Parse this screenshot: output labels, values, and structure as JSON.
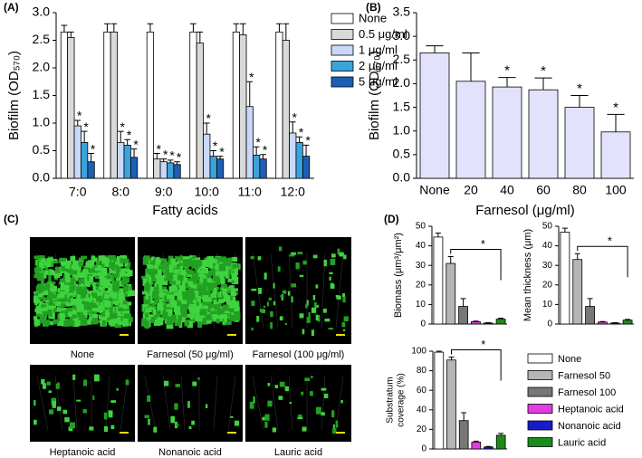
{
  "panel_labels": [
    "(A)",
    "(B)",
    "(C)",
    "(D)"
  ],
  "panel_c": {
    "captions": [
      "None",
      "Farnesol (50 μg/ml)",
      "Farnesol (100 μg/ml)",
      "Heptanoic acid",
      "Nonanoic acid",
      "Lauric acid"
    ]
  },
  "chart_data": [
    {
      "type": "grouped-bar",
      "xlabel": "Fatty acids",
      "ylabel": "Biofilm (OD₅₇₀)",
      "categories": [
        "7:0",
        "8:0",
        "9:0",
        "10:0",
        "11:0",
        "12:0"
      ],
      "significance_label": "*",
      "series": [
        {
          "name": "None",
          "color": "#ffffff",
          "values": [
            2.65,
            2.65,
            2.65,
            2.65,
            2.65,
            2.65
          ],
          "errors": [
            0.12,
            0.15,
            0.15,
            0.15,
            0.15,
            0.15
          ],
          "significant": [
            false,
            false,
            false,
            false,
            false,
            false
          ]
        },
        {
          "name": "0.5 μg/ml",
          "color": "#d9d9d9",
          "values": [
            2.55,
            2.65,
            0.35,
            2.45,
            2.6,
            2.5
          ],
          "errors": [
            0.1,
            0.15,
            0.1,
            0.2,
            0.2,
            0.3
          ],
          "significant": [
            false,
            false,
            true,
            false,
            false,
            false
          ]
        },
        {
          "name": "1 μg/ml",
          "color": "#c9d8fa",
          "values": [
            0.95,
            0.65,
            0.3,
            0.8,
            1.3,
            0.82
          ],
          "errors": [
            0.1,
            0.2,
            0.05,
            0.2,
            0.45,
            0.2
          ],
          "significant": [
            true,
            true,
            true,
            true,
            true,
            true
          ]
        },
        {
          "name": "2 μg/ml",
          "color": "#3ba3dc",
          "values": [
            0.65,
            0.6,
            0.28,
            0.4,
            0.42,
            0.65
          ],
          "errors": [
            0.2,
            0.1,
            0.05,
            0.1,
            0.15,
            0.1
          ],
          "significant": [
            true,
            true,
            true,
            true,
            true,
            true
          ]
        },
        {
          "name": "5 μg/ml",
          "color": "#1c5fb5",
          "values": [
            0.3,
            0.38,
            0.25,
            0.35,
            0.35,
            0.4
          ],
          "errors": [
            0.15,
            0.15,
            0.05,
            0.05,
            0.08,
            0.2
          ],
          "significant": [
            true,
            true,
            true,
            true,
            true,
            true
          ]
        }
      ],
      "ylim": [
        0,
        3
      ],
      "yticks": [
        {
          "value": 0,
          "label": "0.0"
        },
        0.5,
        {
          "value": 1,
          "label": "1.0"
        },
        1.5,
        {
          "value": 2,
          "label": "2.0"
        },
        2.5,
        {
          "value": 3,
          "label": "3.0"
        }
      ]
    },
    {
      "type": "bar",
      "xlabel": "Farnesol (μg/ml)",
      "ylabel": "Biofilm (OD₅₇₀)",
      "categories": [
        "None",
        "20",
        "40",
        "60",
        "80",
        "100"
      ],
      "values": [
        2.65,
        2.05,
        1.93,
        1.87,
        1.5,
        0.98
      ],
      "errors": [
        0.15,
        0.6,
        0.2,
        0.25,
        0.25,
        0.37
      ],
      "significant": [
        false,
        false,
        true,
        true,
        true,
        true
      ],
      "significance_label": "*",
      "color": "#e2e2fd",
      "ylim": [
        0,
        3.5
      ],
      "yticks": [
        {
          "value": 0,
          "label": "0.0"
        },
        0.5,
        {
          "value": 1,
          "label": "1.0"
        },
        1.5,
        {
          "value": 2,
          "label": "2.0"
        },
        2.5,
        {
          "value": 3,
          "label": "3.0"
        },
        3.5
      ]
    },
    {
      "type": "bar",
      "ylabel": "Biomass (μm³/μm²)",
      "categories": [
        null,
        null,
        null,
        null,
        null,
        null
      ],
      "values": [
        44.5,
        31,
        9,
        1.2,
        0.5,
        2.5
      ],
      "errors": [
        2,
        3.5,
        4,
        0.3,
        0.2,
        0.5
      ],
      "colors": [
        "#ffffff",
        "#b5b5b5",
        "#777777",
        "#e43ce4",
        "#1a1acc",
        "#1b8c1b"
      ],
      "bracket_label": "*",
      "ylim": [
        0,
        50
      ],
      "yticks": [
        0,
        10,
        20,
        30,
        40,
        50
      ]
    },
    {
      "type": "bar",
      "ylabel": "Mean thickness (μm)",
      "categories": [
        null,
        null,
        null,
        null,
        null,
        null
      ],
      "values": [
        47,
        33,
        9,
        1,
        0.5,
        2
      ],
      "errors": [
        2,
        3,
        4,
        0.3,
        0.2,
        0.4
      ],
      "colors": [
        "#ffffff",
        "#b5b5b5",
        "#777777",
        "#e43ce4",
        "#1a1acc",
        "#1b8c1b"
      ],
      "bracket_label": "*",
      "ylim": [
        0,
        50
      ],
      "yticks": [
        0,
        10,
        20,
        30,
        40,
        50
      ]
    },
    {
      "type": "bar",
      "ylabel": [
        "Substratum",
        "coverage (%)"
      ],
      "categories": [
        null,
        null,
        null,
        null,
        null,
        null
      ],
      "values": [
        99,
        91,
        29,
        7,
        2,
        14
      ],
      "errors": [
        1,
        3,
        8,
        1,
        0.5,
        2
      ],
      "colors": [
        "#ffffff",
        "#b5b5b5",
        "#777777",
        "#e43ce4",
        "#1a1acc",
        "#1b8c1b"
      ],
      "bracket_label": "*",
      "legend": [
        "None",
        "Farnesol 50",
        "Farnesol 100",
        "Heptanoic acid",
        "Nonanoic acid",
        "Lauric acid"
      ],
      "ylim": [
        0,
        100
      ],
      "yticks": [
        0,
        20,
        40,
        60,
        80,
        100
      ]
    }
  ]
}
